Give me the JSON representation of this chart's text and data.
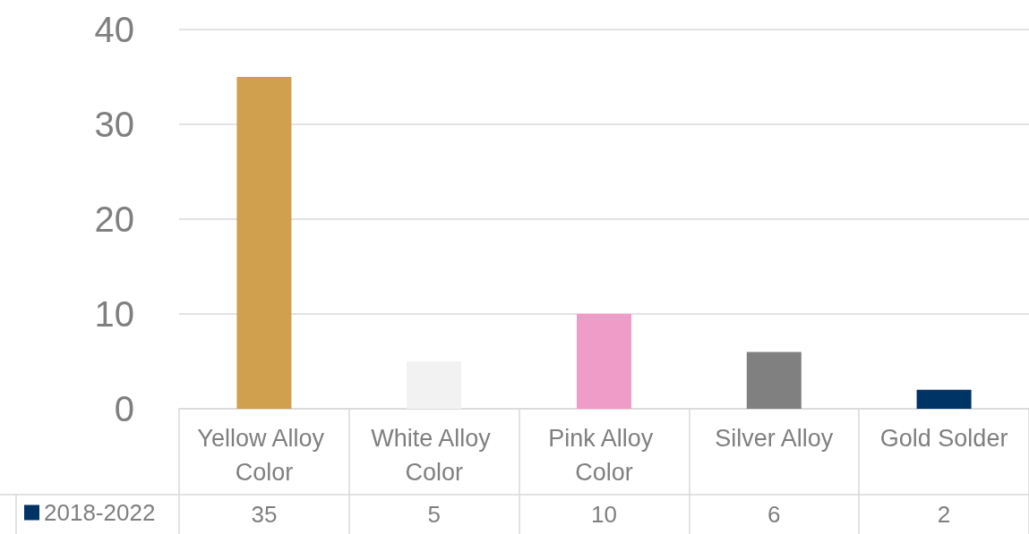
{
  "chart_data": {
    "type": "bar",
    "categories": [
      "Yellow Alloy Color",
      "White Alloy Color",
      "Pink Alloy Color",
      "Silver Alloy",
      "Gold Solder"
    ],
    "series": [
      {
        "name": "2018-2022",
        "color": "#003366",
        "colors": [
          "#d0a04e",
          "#f2f2f2",
          "#f09cc8",
          "#808080",
          "#003366"
        ],
        "values": [
          35,
          5,
          10,
          6,
          2
        ]
      }
    ],
    "ylim": [
      0,
      40
    ],
    "yticks": [
      0,
      10,
      20,
      30,
      40
    ],
    "grid": "y",
    "legend": "bottom left",
    "data_labels": true
  }
}
